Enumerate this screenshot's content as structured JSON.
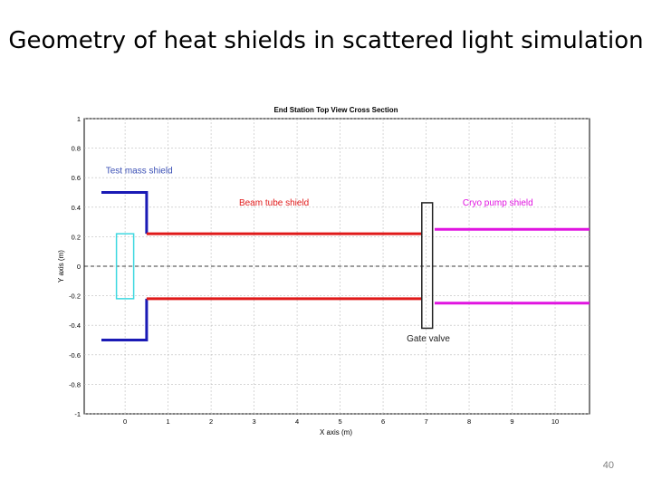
{
  "slide": {
    "title": "Geometry of heat shields in scattered light simulation",
    "page_number": "40"
  },
  "chart_data": {
    "type": "line",
    "title": "End Station Top View Cross Section",
    "xlabel": "X axis (m)",
    "ylabel": "Y axis (m)",
    "xlim": [
      -0.95,
      10.8
    ],
    "ylim": [
      -1,
      1
    ],
    "xticks": [
      0,
      1,
      2,
      3,
      4,
      5,
      6,
      7,
      8,
      9,
      10
    ],
    "yticks": [
      -1,
      -0.8,
      -0.6,
      -0.4,
      -0.2,
      0,
      0.2,
      0.4,
      0.6,
      0.8,
      1
    ],
    "grid": true,
    "series": [
      {
        "name": "Test mass shield",
        "color": "#1a1ab5",
        "segments": [
          [
            [
              -0.55,
              0.5
            ],
            [
              0.5,
              0.5
            ],
            [
              0.5,
              0.22
            ]
          ],
          [
            [
              -0.55,
              -0.5
            ],
            [
              0.5,
              -0.5
            ],
            [
              0.5,
              -0.22
            ]
          ]
        ]
      },
      {
        "name": "Beam tube shield",
        "color": "#e01a1a",
        "segments": [
          [
            [
              0.5,
              0.22
            ],
            [
              6.9,
              0.22
            ]
          ],
          [
            [
              0.5,
              -0.22
            ],
            [
              6.9,
              -0.22
            ]
          ]
        ]
      },
      {
        "name": "Cryo pump shield",
        "color": "#e014e0",
        "segments": [
          [
            [
              7.2,
              0.25
            ],
            [
              10.8,
              0.25
            ]
          ],
          [
            [
              7.2,
              -0.25
            ],
            [
              10.8,
              -0.25
            ]
          ]
        ]
      }
    ],
    "boxes": [
      {
        "name": "test-mass",
        "color": "#3ed8e0",
        "x0": -0.2,
        "x1": 0.2,
        "y0": -0.22,
        "y1": 0.22
      },
      {
        "name": "gate-valve",
        "color": "#222222",
        "label": "Gate valve",
        "x0": 6.9,
        "x1": 7.15,
        "y0": -0.42,
        "y1": 0.43
      }
    ],
    "annotations": [
      {
        "text": "Test mass shield",
        "x": -0.45,
        "y": 0.63,
        "color": "#3a4fb5"
      },
      {
        "text": "Beam tube shield",
        "x": 2.65,
        "y": 0.41,
        "color": "#e01a1a"
      },
      {
        "text": "Cryo pump shield",
        "x": 7.85,
        "y": 0.41,
        "color": "#e014e0"
      },
      {
        "text": "Gate valve",
        "x": 6.55,
        "y": -0.51,
        "color": "#222222"
      }
    ]
  }
}
